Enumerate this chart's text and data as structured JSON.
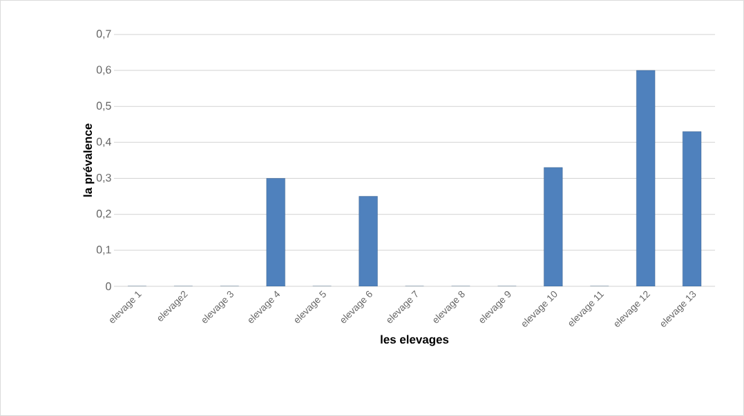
{
  "chart_data": {
    "type": "bar",
    "xlabel": "les elevages",
    "ylabel": "la prévalence",
    "categories": [
      "elevage 1",
      "elevage2",
      "elevage 3",
      "elevage 4",
      "elevage 5",
      "elevage 6",
      "elevage 7",
      "elevage 8",
      "elevage 9",
      "elevage 10",
      "elevage 11",
      "elevage 12",
      "elevage 13"
    ],
    "values": [
      0,
      0,
      0,
      0.3,
      0,
      0.25,
      0,
      0,
      0,
      0.33,
      0,
      0.6,
      0.43
    ],
    "color": "#4f81bd",
    "ylim": [
      0,
      0.7
    ],
    "yticks": [
      0,
      {
        "value": 0.1,
        "label": "0,1"
      },
      {
        "value": 0.2,
        "label": "0,2"
      },
      {
        "value": 0.3,
        "label": "0,3"
      },
      {
        "value": 0.4,
        "label": "0,4"
      },
      {
        "value": 0.5,
        "label": "0,5"
      },
      {
        "value": 0.6,
        "label": "0,6"
      },
      {
        "value": 0.7,
        "label": "0,7"
      }
    ],
    "grid": "y"
  }
}
